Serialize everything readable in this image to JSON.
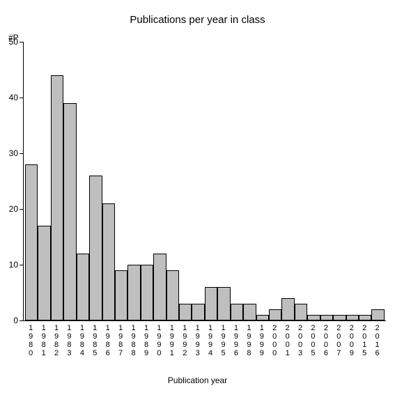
{
  "chart": {
    "type": "bar",
    "title": "Publications per year in class",
    "title_fontsize": 15,
    "y_axis_label": "#P",
    "x_axis_title": "Publication year",
    "label_fontsize": 12,
    "categories": [
      "1980",
      "1981",
      "1982",
      "1983",
      "1984",
      "1985",
      "1986",
      "1987",
      "1988",
      "1989",
      "1990",
      "1991",
      "1992",
      "1993",
      "1994",
      "1995",
      "1996",
      "1998",
      "1999",
      "2000",
      "2001",
      "2003",
      "2005",
      "2006",
      "2007",
      "2009",
      "2015",
      "2016"
    ],
    "values": [
      28,
      17,
      44,
      39,
      12,
      26,
      21,
      9,
      10,
      10,
      12,
      9,
      3,
      3,
      6,
      6,
      3,
      3,
      1,
      2,
      4,
      3,
      1,
      1,
      1,
      1,
      1,
      2
    ],
    "bar_color": "#bfbfbf",
    "bar_border_color": "#000000",
    "axis_color": "#000000",
    "background_color": "#ffffff",
    "ylim": [
      0,
      50
    ],
    "ytick_step": 10,
    "bar_width": 1.0
  }
}
